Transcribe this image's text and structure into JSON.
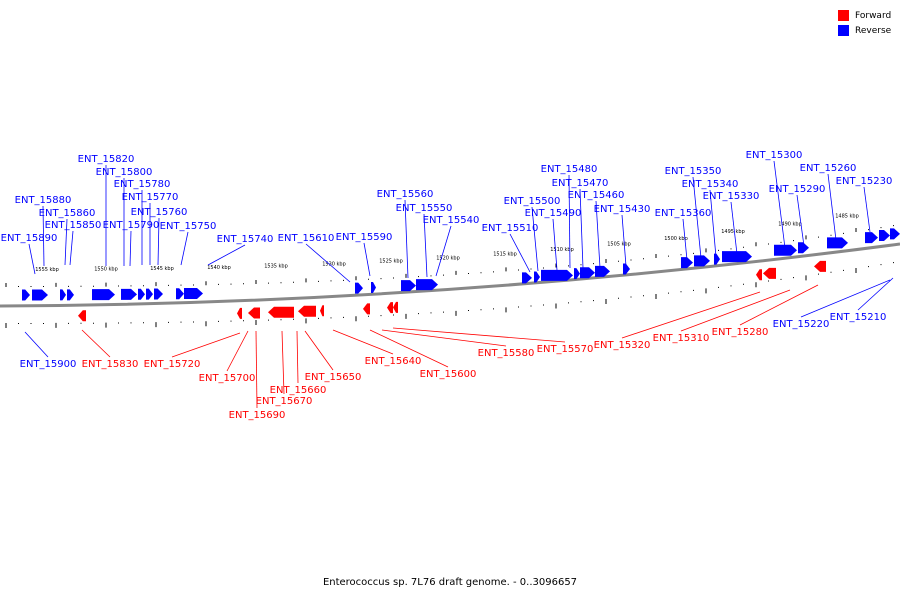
{
  "legend": {
    "forward_label": "Forward",
    "reverse_label": "Reverse",
    "forward_color": "#ff0000",
    "reverse_color": "#0000ff"
  },
  "caption": "Enterococcus sp. 7L76 draft genome. - 0..3096657",
  "scale_labels": [
    "1555 kbp",
    "1550 kbp",
    "1545 kbp",
    "1540 kbp",
    "1535 kbp",
    "1530 kbp",
    "1525 kbp",
    "1520 kbp",
    "1515 kbp",
    "1510 kbp",
    "1505 kbp",
    "1500 kbp",
    "1495 kbp",
    "1490 kbp",
    "1485 kbp"
  ],
  "reverse_genes": [
    "ENT_15890",
    "ENT_15880",
    "ENT_15860",
    "ENT_15850",
    "ENT_15820",
    "ENT_15800",
    "ENT_15790",
    "ENT_15780",
    "ENT_15770",
    "ENT_15760",
    "ENT_15750",
    "ENT_15740",
    "ENT_15610",
    "ENT_15590",
    "ENT_15560",
    "ENT_15550",
    "ENT_15540",
    "ENT_15510",
    "ENT_15500",
    "ENT_15490",
    "ENT_15480",
    "ENT_15470",
    "ENT_15460",
    "ENT_15430",
    "ENT_15360",
    "ENT_15350",
    "ENT_15340",
    "ENT_15330",
    "ENT_15300",
    "ENT_15290",
    "ENT_15260",
    "ENT_15230",
    "ENT_15900",
    "ENT_15220",
    "ENT_15210"
  ],
  "forward_genes": [
    "ENT_15830",
    "ENT_15720",
    "ENT_15700",
    "ENT_15690",
    "ENT_15670",
    "ENT_15660",
    "ENT_15650",
    "ENT_15640",
    "ENT_15600",
    "ENT_15580",
    "ENT_15570",
    "ENT_15320",
    "ENT_15310",
    "ENT_15280"
  ]
}
